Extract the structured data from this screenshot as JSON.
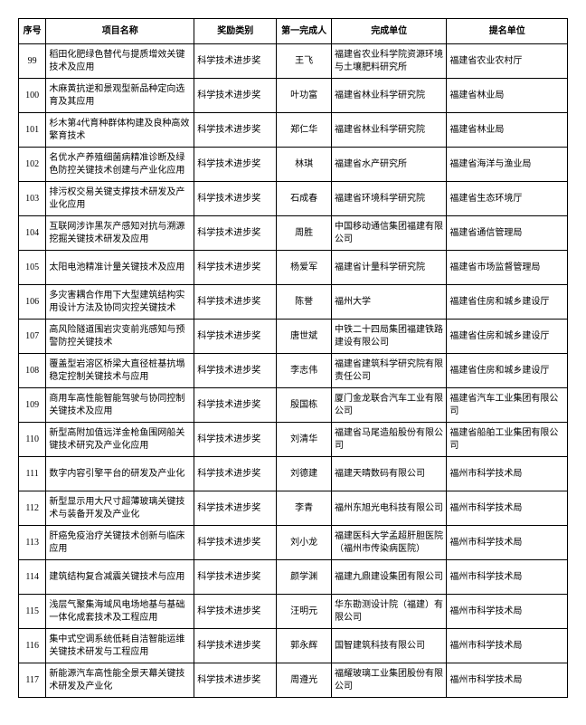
{
  "table": {
    "columns": [
      {
        "key": "seq",
        "label": "序号",
        "class": "col-seq"
      },
      {
        "key": "name",
        "label": "项目名称",
        "class": "col-name"
      },
      {
        "key": "award",
        "label": "奖励类别",
        "class": "col-award"
      },
      {
        "key": "person",
        "label": "第一完成人",
        "class": "col-person"
      },
      {
        "key": "unit",
        "label": "完成单位",
        "class": "col-unit"
      },
      {
        "key": "nominator",
        "label": "提名单位",
        "class": "col-nominator"
      }
    ],
    "rows": [
      {
        "seq": "99",
        "name": "稻田化肥绿色替代与提质增效关键技术及应用",
        "award": "科学技术进步奖",
        "person": "王飞",
        "unit": "福建省农业科学院资源环境与土壤肥料研究所",
        "nominator": "福建省农业农村厅"
      },
      {
        "seq": "100",
        "name": "木麻黄抗逆和景观型新品种定向选育及其应用",
        "award": "科学技术进步奖",
        "person": "叶功富",
        "unit": "福建省林业科学研究院",
        "nominator": "福建省林业局"
      },
      {
        "seq": "101",
        "name": "杉木第4代育种群体构建及良种高效繁育技术",
        "award": "科学技术进步奖",
        "person": "郑仁华",
        "unit": "福建省林业科学研究院",
        "nominator": "福建省林业局"
      },
      {
        "seq": "102",
        "name": "名优水产养殖细菌病精准诊断及绿色防控关键技术创建与产业化应用",
        "award": "科学技术进步奖",
        "person": "林琪",
        "unit": "福建省水产研究所",
        "nominator": "福建省海洋与渔业局"
      },
      {
        "seq": "103",
        "name": "排污权交易关键支撑技术研发及产业化应用",
        "award": "科学技术进步奖",
        "person": "石成春",
        "unit": "福建省环境科学研究院",
        "nominator": "福建省生态环境厅"
      },
      {
        "seq": "104",
        "name": "互联网涉诈黑灰产感知对抗与溯源挖掘关键技术研发及应用",
        "award": "科学技术进步奖",
        "person": "周胜",
        "unit": "中国移动通信集团福建有限公司",
        "nominator": "福建省通信管理局"
      },
      {
        "seq": "105",
        "name": "太阳电池精准计量关键技术及应用",
        "award": "科学技术进步奖",
        "person": "杨爱军",
        "unit": "福建省计量科学研究院",
        "nominator": "福建省市场监督管理局"
      },
      {
        "seq": "106",
        "name": "多灾害耦合作用下大型建筑结构实用设计方法及协同灾控关键技术",
        "award": "科学技术进步奖",
        "person": "陈誉",
        "unit": "福州大学",
        "nominator": "福建省住房和城乡建设厅"
      },
      {
        "seq": "107",
        "name": "高风险隧道围岩灾变前兆感知与预警防控关键技术",
        "award": "科学技术进步奖",
        "person": "唐世斌",
        "unit": "中铁二十四局集团福建铁路建设有限公司",
        "nominator": "福建省住房和城乡建设厅"
      },
      {
        "seq": "108",
        "name": "覆盖型岩溶区桥梁大直径桩基抗塌稳定控制关键技术与应用",
        "award": "科学技术进步奖",
        "person": "李志伟",
        "unit": "福建省建筑科学研究院有限责任公司",
        "nominator": "福建省住房和城乡建设厅"
      },
      {
        "seq": "109",
        "name": "商用车高性能智能驾驶与协同控制关键技术及应用",
        "award": "科学技术进步奖",
        "person": "殷国栋",
        "unit": "厦门金龙联合汽车工业有限公司",
        "nominator": "福建省汽车工业集团有限公司"
      },
      {
        "seq": "110",
        "name": "新型高附加值远洋金枪鱼围网船关键技术研究及产业化应用",
        "award": "科学技术进步奖",
        "person": "刘清华",
        "unit": "福建省马尾造船股份有限公司",
        "nominator": "福建省船舶工业集团有限公司"
      },
      {
        "seq": "111",
        "name": "数字内容引擎平台的研发及产业化",
        "award": "科学技术进步奖",
        "person": "刘德建",
        "unit": "福建天晴数码有限公司",
        "nominator": "福州市科学技术局"
      },
      {
        "seq": "112",
        "name": "新型显示用大尺寸超薄玻璃关键技术与装备开发及产业化",
        "award": "科学技术进步奖",
        "person": "李青",
        "unit": "福州东旭光电科技有限公司",
        "nominator": "福州市科学技术局"
      },
      {
        "seq": "113",
        "name": "肝癌免疫治疗关键技术创新与临床应用",
        "award": "科学技术进步奖",
        "person": "刘小龙",
        "unit": "福建医科大学孟超肝胆医院（福州市传染病医院）",
        "nominator": "福州市科学技术局"
      },
      {
        "seq": "114",
        "name": "建筑结构复合减震关键技术与应用",
        "award": "科学技术进步奖",
        "person": "颜学渊",
        "unit": "福建九鼎建设集团有限公司",
        "nominator": "福州市科学技术局"
      },
      {
        "seq": "115",
        "name": "浅层气聚集海域风电场地基与基础一体化成套技术及工程应用",
        "award": "科学技术进步奖",
        "person": "汪明元",
        "unit": "华东勘测设计院（福建）有限公司",
        "nominator": "福州市科学技术局"
      },
      {
        "seq": "116",
        "name": "集中式空调系统低耗自洁智能运维关键技术研发与工程应用",
        "award": "科学技术进步奖",
        "person": "郭永辉",
        "unit": "国智建筑科技有限公司",
        "nominator": "福州市科学技术局"
      },
      {
        "seq": "117",
        "name": "新能源汽车高性能全景天幕关键技术研发及产业化",
        "award": "科学技术进步奖",
        "person": "周遵光",
        "unit": "福耀玻璃工业集团股份有限公司",
        "nominator": "福州市科学技术局"
      }
    ]
  },
  "style": {
    "font_family": "SimSun",
    "header_fontsize": 10,
    "cell_fontsize": 10,
    "border_color": "#000000",
    "background_color": "#ffffff",
    "text_color": "#000000"
  }
}
